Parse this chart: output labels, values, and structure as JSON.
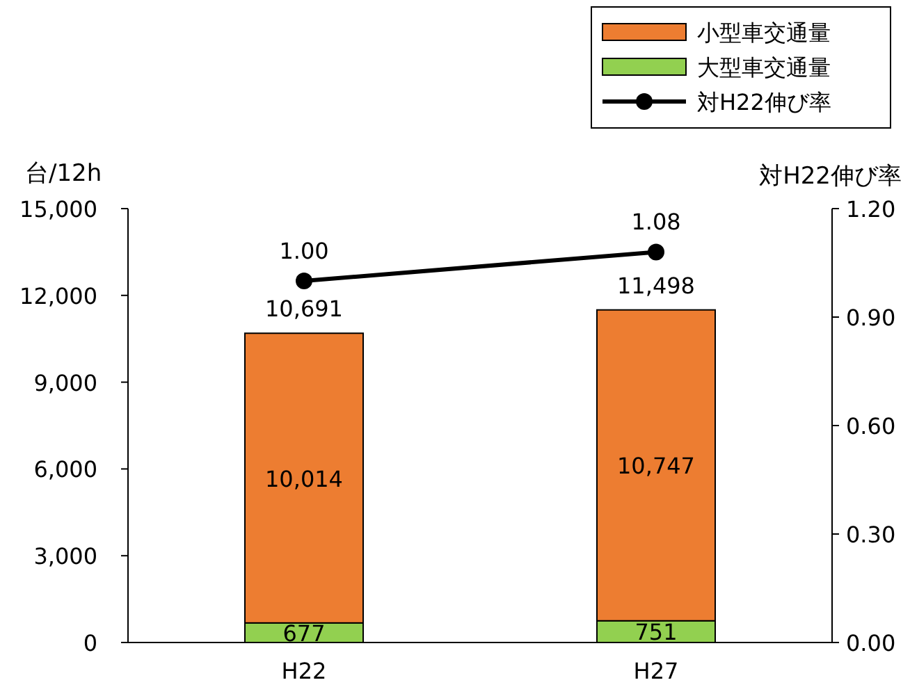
{
  "chart_data": {
    "type": "bar",
    "stacked": true,
    "categories": [
      "H22",
      "H27"
    ],
    "ylabel": "台/12h",
    "y2label": "対H22伸び率",
    "ylim": [
      0,
      15000
    ],
    "yticks": [
      0,
      {
        "value": 3000,
        "label": "3,000"
      },
      {
        "value": 6000,
        "label": "6,000"
      },
      {
        "value": 9000,
        "label": "9,000"
      },
      {
        "value": 12000,
        "label": "12,000"
      },
      {
        "value": 15000,
        "label": "15,000"
      }
    ],
    "y2lim": [
      0,
      1.2
    ],
    "y2ticks": [
      {
        "value": 0,
        "label": "0.00"
      },
      {
        "value": 0.3,
        "label": "0.30"
      },
      {
        "value": 0.6,
        "label": "0.60"
      },
      {
        "value": 0.9,
        "label": "0.90"
      },
      {
        "value": 1.2,
        "label": "1.20"
      }
    ],
    "series": [
      {
        "name": "大型車交通量",
        "color": "#92d050",
        "values": [
          677,
          751
        ],
        "value_labels": [
          "677",
          "751"
        ]
      },
      {
        "name": "小型車交通量",
        "color": "#ed7d31",
        "values": [
          10014,
          10747
        ],
        "value_labels": [
          "10,014",
          "10,747"
        ]
      },
      {
        "name": "対H22伸び率",
        "type": "line",
        "axis": "y2",
        "color": "#000000",
        "marker": "circle",
        "values": [
          1.0,
          1.08
        ],
        "value_labels": [
          "1.00",
          "1.08"
        ]
      }
    ],
    "totals": [
      "10,691",
      "11,498"
    ],
    "legend": "top right"
  }
}
